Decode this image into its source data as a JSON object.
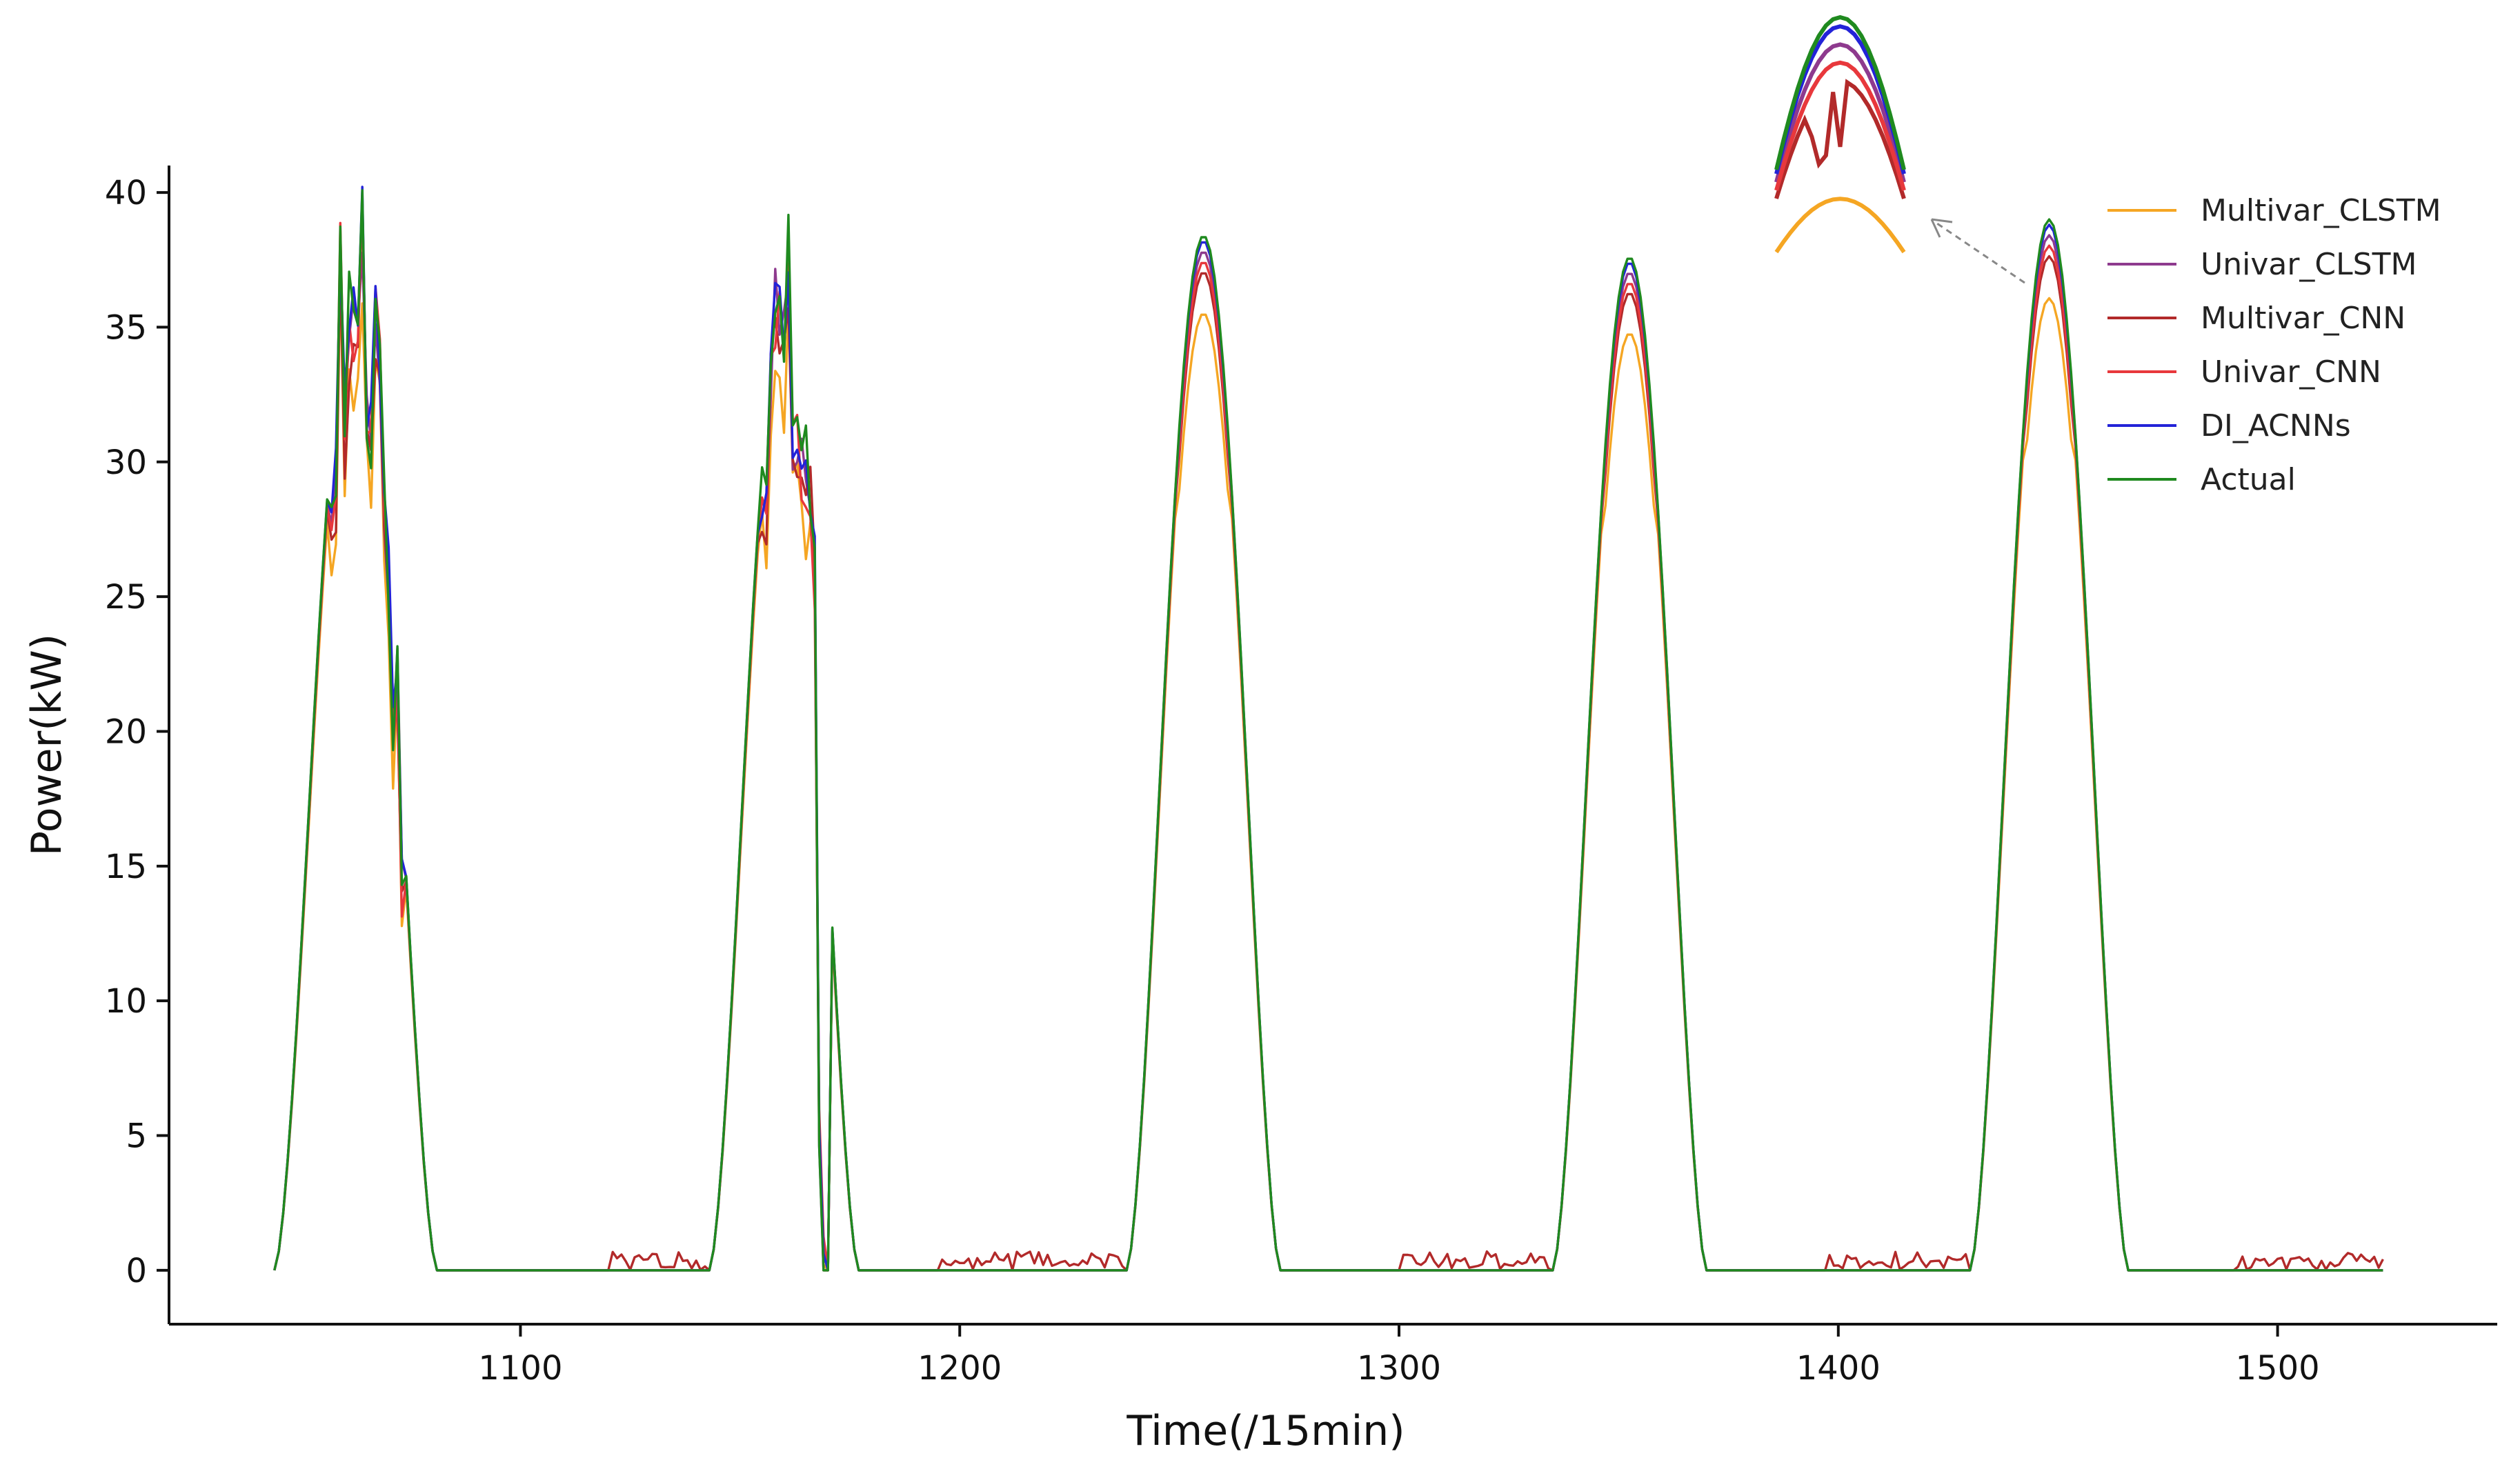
{
  "chart_data": {
    "type": "line",
    "xlabel": "Time(/15min)",
    "ylabel": "Power(kW)",
    "xlim": [
      1020,
      1550
    ],
    "ylim": [
      -2,
      41
    ],
    "xticks": [
      1100,
      1200,
      1300,
      1400,
      1500
    ],
    "yticks": [
      0,
      5,
      10,
      15,
      20,
      25,
      30,
      35,
      40
    ],
    "grid": false,
    "legend_position": "top-right",
    "x_range": [
      1044,
      1524
    ],
    "days": [
      {
        "start": 1044,
        "end": 1081,
        "peak": 37.0,
        "noisy": true
      },
      {
        "start": 1143,
        "end": 1177,
        "peak": 35.5,
        "noisy": true
      },
      {
        "start": 1238,
        "end": 1273,
        "peak": 38.4,
        "noisy": false
      },
      {
        "start": 1335,
        "end": 1370,
        "peak": 37.6,
        "noisy": false
      },
      {
        "start": 1430,
        "end": 1466,
        "peak": 39.0,
        "noisy": false
      }
    ],
    "series": [
      {
        "name": "Multivar_CLSTM",
        "color": "#f5a623",
        "peak_scale": 0.925
      },
      {
        "name": "Univar_CLSTM",
        "color": "#8e3a8e",
        "peak_scale": 0.985
      },
      {
        "name": "Multivar_CNN",
        "color": "#b22a2a",
        "peak_scale": 0.965
      },
      {
        "name": "Univar_CNN",
        "color": "#e8383c",
        "peak_scale": 0.975
      },
      {
        "name": "DI_ACNNs",
        "color": "#2323d8",
        "peak_scale": 0.995
      },
      {
        "name": "Actual",
        "color": "#1f8a1f",
        "peak_scale": 1.0
      }
    ]
  }
}
